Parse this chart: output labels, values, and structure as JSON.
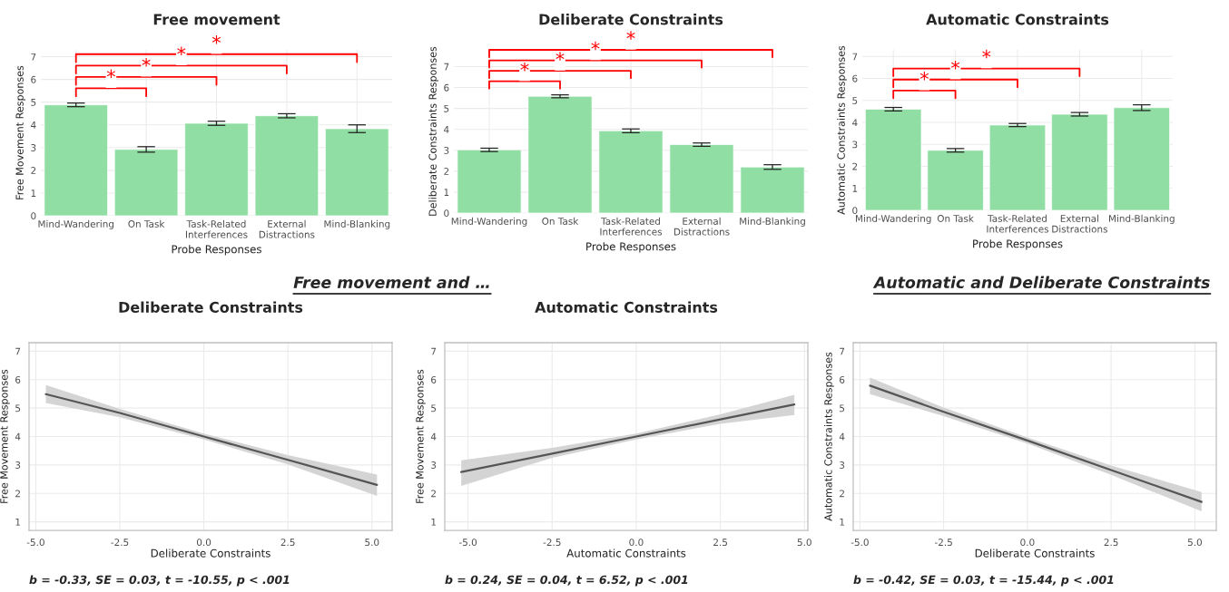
{
  "chart_data": [
    {
      "type": "bar",
      "title": "Free movement",
      "xlabel": "Probe Responses",
      "ylabel": "Free Movement Responses",
      "categories": [
        "Mind-Wandering",
        "On Task",
        "Task-Related\nInterferences",
        "External\nDistractions",
        "Mind-Blanking"
      ],
      "values": [
        4.88,
        2.92,
        4.07,
        4.4,
        3.83
      ],
      "errors": [
        0.08,
        0.12,
        0.09,
        0.09,
        0.17
      ],
      "color": "#90dea3",
      "ylim": [
        0,
        7.3
      ],
      "yticks": [
        0,
        1,
        2,
        3,
        4,
        5,
        6,
        7
      ],
      "grid": true,
      "annotations": [
        "*",
        "*",
        "*",
        "*"
      ]
    },
    {
      "type": "bar",
      "title": "Deliberate Constraints",
      "xlabel": "Probe Responses",
      "ylabel": "Deliberate Constraints Responses",
      "categories": [
        "Mind-Wandering",
        "On Task",
        "Task-Related\nInterferences",
        "External\nDistractions",
        "Mind-Blanking"
      ],
      "values": [
        3.02,
        5.58,
        3.93,
        3.27,
        2.2
      ],
      "errors": [
        0.08,
        0.07,
        0.09,
        0.08,
        0.11
      ],
      "color": "#90dea3",
      "ylim": [
        0,
        7.8
      ],
      "yticks": [
        0,
        1,
        2,
        3,
        4,
        5,
        6,
        7
      ],
      "grid": true,
      "annotations": [
        "*",
        "*",
        "*",
        "*"
      ]
    },
    {
      "type": "bar",
      "title": "Automatic Constraints",
      "xlabel": "Probe Responses",
      "ylabel": "Automatic Constraints Responses",
      "categories": [
        "Mind-Wandering",
        "On Task",
        "Task-Related\nInterferences",
        "External\nDistractions",
        "Mind-Blanking"
      ],
      "values": [
        4.6,
        2.73,
        3.88,
        4.37,
        4.67
      ],
      "errors": [
        0.08,
        0.08,
        0.07,
        0.08,
        0.13
      ],
      "color": "#90dea3",
      "ylim": [
        0,
        7.3
      ],
      "yticks": [
        0,
        1,
        2,
        3,
        4,
        5,
        6,
        7
      ],
      "grid": true,
      "annotations": [
        "*",
        "*",
        "*"
      ]
    },
    {
      "type": "line",
      "title": "Deliberate Constraints",
      "xlabel": "Deliberate Constraints",
      "ylabel": "Free Movement Responses",
      "series": [
        {
          "color": "#555555",
          "x": [
            -4.7,
            -2.5,
            0,
            2.5,
            5.15
          ],
          "values": [
            5.49,
            4.83,
            4.0,
            3.18,
            2.3
          ],
          "lower": [
            5.18,
            4.68,
            3.9,
            3.02,
            1.91
          ],
          "upper": [
            5.81,
            4.97,
            4.1,
            3.35,
            2.66
          ]
        }
      ],
      "xlim": [
        -5.2,
        5.6
      ],
      "xticks": [
        {
          "value": -5,
          "label": "-5.0"
        },
        {
          "value": -2.5,
          "label": "-2.5"
        },
        {
          "value": 0,
          "label": "0.0"
        },
        {
          "value": 2.5,
          "label": "2.5"
        },
        {
          "value": 5,
          "label": "5.0"
        }
      ],
      "ylim": [
        0.7,
        7.3
      ],
      "yticks": [
        1,
        2,
        3,
        4,
        5,
        6,
        7
      ],
      "grid": true,
      "annotations": [
        "Free movement and …",
        "b = -0.33, SE = 0.03, t = -10.55, p < .001"
      ]
    },
    {
      "type": "line",
      "title": "Automatic Constraints",
      "xlabel": "Automatic Constraints",
      "ylabel": "Free Movement Responses",
      "series": [
        {
          "color": "#555555",
          "x": [
            -5.2,
            -2.5,
            0,
            2.5,
            4.7
          ],
          "values": [
            2.75,
            3.4,
            4.0,
            4.6,
            5.13
          ],
          "lower": [
            2.26,
            3.25,
            3.9,
            4.45,
            4.76
          ],
          "upper": [
            3.16,
            3.6,
            4.1,
            4.78,
            5.47
          ]
        }
      ],
      "xlim": [
        -5.69,
        5.1
      ],
      "xticks": [
        {
          "value": -5,
          "label": "-5.0"
        },
        {
          "value": -2.5,
          "label": "-2.5"
        },
        {
          "value": 0,
          "label": "0.0"
        },
        {
          "value": 2.5,
          "label": "2.5"
        },
        {
          "value": 5,
          "label": "5.0"
        }
      ],
      "ylim": [
        0.7,
        7.3
      ],
      "yticks": [
        1,
        2,
        3,
        4,
        5,
        6,
        7
      ],
      "grid": true,
      "annotations": [
        "b = 0.24, SE = 0.04, t = 6.52, p < .001"
      ]
    },
    {
      "type": "line",
      "xlabel": "Deliberate Constraints",
      "ylabel": "Automatic Constraints Responses",
      "series": [
        {
          "color": "#555555",
          "x": [
            -4.7,
            -2.5,
            0,
            2.5,
            5.2
          ],
          "values": [
            5.79,
            4.87,
            3.86,
            2.82,
            1.7
          ],
          "lower": [
            5.49,
            4.72,
            3.75,
            2.65,
            1.37
          ],
          "upper": [
            6.07,
            5.02,
            3.97,
            2.98,
            2.05
          ]
        }
      ],
      "xlim": [
        -5.2,
        5.64
      ],
      "xticks": [
        {
          "value": -5,
          "label": "-5.0"
        },
        {
          "value": -2.5,
          "label": "-2.5"
        },
        {
          "value": 0,
          "label": "0.0"
        },
        {
          "value": 2.5,
          "label": "2.5"
        },
        {
          "value": 5,
          "label": "5.0"
        }
      ],
      "ylim": [
        0.7,
        7.3
      ],
      "yticks": [
        1,
        2,
        3,
        4,
        5,
        6,
        7
      ],
      "grid": true,
      "annotations": [
        "Automatic and Deliberate Constraints",
        "b = -0.42, SE = 0.03, t = -15.44, p < .001"
      ]
    }
  ]
}
